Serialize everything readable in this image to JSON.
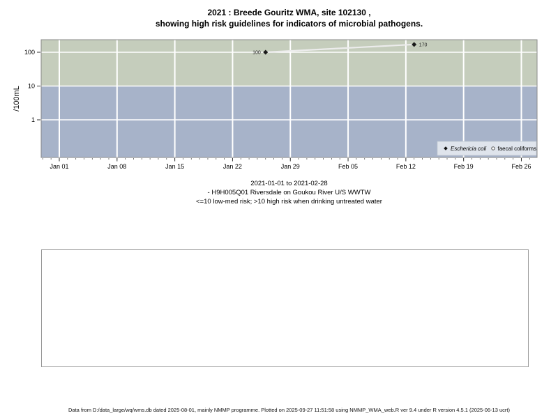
{
  "title": {
    "line1": "2021 : Breede Gouritz WMA, site 102130 ,",
    "line2": "showing high risk guidelines for indicators of microbial pathogens."
  },
  "caption": {
    "line1": "2021-01-01 to 2021-02-28",
    "line2": "- H9H005Q01 Riversdale on Goukou River U/S WWTW",
    "line3": "<=10 low-med risk; >10 high risk when drinking untreated water"
  },
  "footer": {
    "text": "Data from D:/data_large/wq/wms.db dated 2025-08-01, mainly NMMP programme. Plotted on 2025-09-27 11:51:58 using NMMP_WMA_web.R ver 9.4 under R version 4.5.1 (2025-06-13 ucrt)"
  },
  "chart_data": {
    "type": "line",
    "title": "2021 : Breede Gouritz WMA, site 102130 , showing high risk guidelines for indicators of microbial pathogens.",
    "ylabel": "/100mL",
    "y_scale": "log",
    "y_ticks": [
      100,
      10,
      1
    ],
    "y_range": [
      0.07,
      240
    ],
    "x_range": [
      "2020-12-30",
      "2021-02-28"
    ],
    "x_ticks": [
      {
        "label": "Jan 01",
        "day": 0
      },
      {
        "label": "Jan 08",
        "day": 7
      },
      {
        "label": "Jan 15",
        "day": 14
      },
      {
        "label": "Jan 22",
        "day": 21
      },
      {
        "label": "Jan 29",
        "day": 28
      },
      {
        "label": "Feb 05",
        "day": 35
      },
      {
        "label": "Feb 12",
        "day": 42
      },
      {
        "label": "Feb 19",
        "day": 49
      },
      {
        "label": "Feb 26",
        "day": 56
      }
    ],
    "threshold": 10,
    "bands": [
      {
        "label": "high risk (>10)",
        "color": "#c5cdbc"
      },
      {
        "label": "low-med risk (<=10)",
        "color": "#a7b3c9"
      }
    ],
    "series": [
      {
        "name": "Eschericia coli",
        "marker": "filled-diamond",
        "points": [
          {
            "date": "2021-01-26",
            "day": 25,
            "value": 100,
            "label_side": "left"
          },
          {
            "date": "2021-02-13",
            "day": 43,
            "value": 170,
            "label_side": "right"
          }
        ]
      },
      {
        "name": "faecal coliforms",
        "marker": "open-circle",
        "points": []
      }
    ],
    "colors": {
      "grid": "#ffffff",
      "line": "#ececec",
      "marker": "#1a1a1a",
      "panel_border": "#8a8a8a",
      "legend_bg": "#dfe4ec",
      "tick_text": "#000000"
    },
    "legend_position": "bottom-right",
    "grid": "on"
  }
}
